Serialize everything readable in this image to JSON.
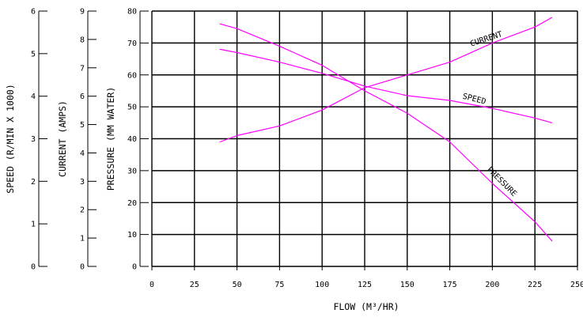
{
  "chart_data": {
    "type": "line",
    "xlabel": "FLOW (M³/HR)",
    "x_ticks": [
      "0",
      "25",
      "50",
      "75",
      "100",
      "125",
      "150",
      "175",
      "200",
      "225",
      "250"
    ],
    "xlim": [
      0,
      250
    ],
    "grid": true,
    "axes": [
      {
        "id": "pressure",
        "label": "PRESSURE (MM WATER)",
        "ylim": [
          0,
          80
        ],
        "ticks": [
          "0",
          "10",
          "20",
          "30",
          "40",
          "50",
          "60",
          "70",
          "80"
        ]
      },
      {
        "id": "current",
        "label": "CURRENT (AMPS)",
        "ylim": [
          0,
          9
        ],
        "ticks": [
          "0",
          "1",
          "2",
          "3",
          "4",
          "5",
          "6",
          "7",
          "8",
          "9"
        ]
      },
      {
        "id": "speed",
        "label": "SPEED (R/MIN X 1000)",
        "ylim": [
          0,
          6
        ],
        "ticks": [
          "0",
          "1",
          "2",
          "3",
          "4",
          "5",
          "6"
        ]
      }
    ],
    "series": [
      {
        "name": "CURRENT",
        "axis": "pressure",
        "color": "#ff00ff",
        "x": [
          40,
          50,
          75,
          100,
          125,
          150,
          175,
          200,
          225,
          235
        ],
        "y": [
          39,
          41,
          44,
          49,
          56,
          60,
          64,
          70,
          75,
          78
        ]
      },
      {
        "name": "SPEED",
        "axis": "pressure",
        "color": "#ff00ff",
        "x": [
          40,
          50,
          75,
          100,
          125,
          150,
          175,
          200,
          225,
          235
        ],
        "y": [
          68,
          67,
          64,
          60.5,
          56.5,
          53.5,
          52,
          49.5,
          46.5,
          45
        ]
      },
      {
        "name": "PRESSURE",
        "axis": "pressure",
        "color": "#ff00ff",
        "x": [
          40,
          50,
          75,
          100,
          125,
          150,
          175,
          200,
          225,
          235
        ],
        "y": [
          76,
          74.5,
          69,
          63,
          55,
          48,
          39,
          26,
          14,
          8
        ]
      }
    ]
  }
}
